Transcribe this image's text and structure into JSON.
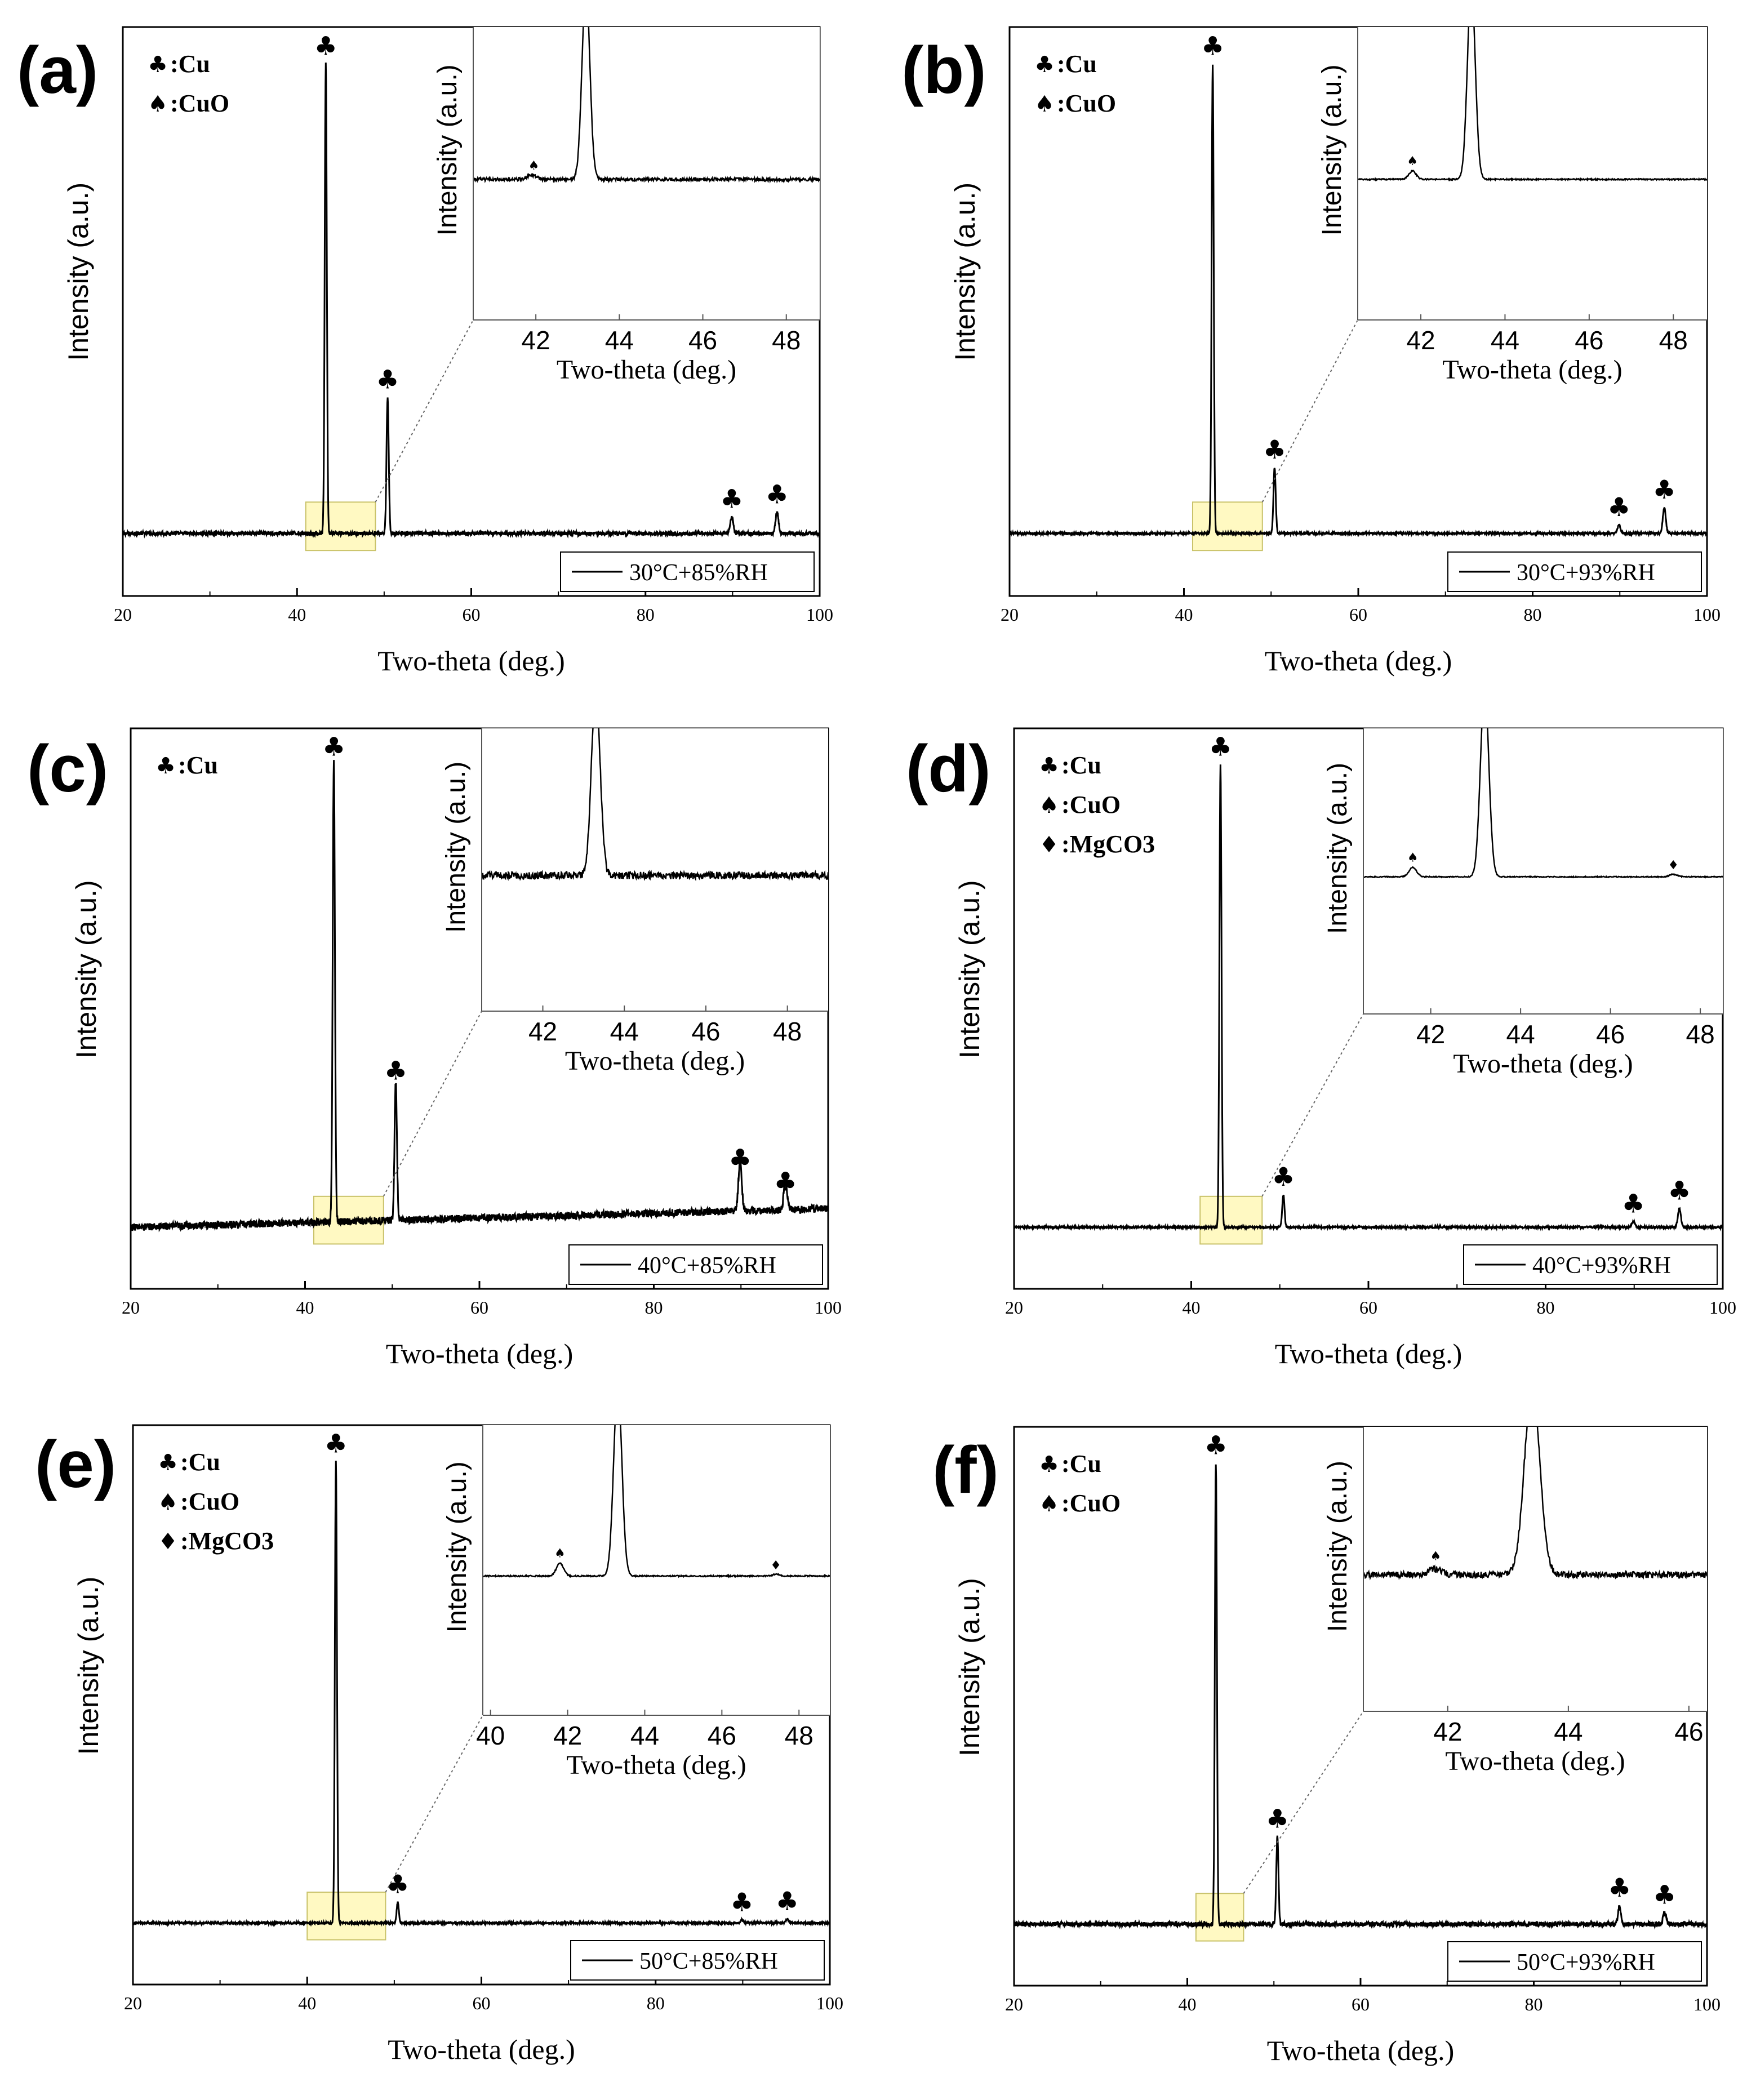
{
  "chart_data": [
    {
      "type": "line",
      "panel": "(a)",
      "x_label": "Two-theta (deg.)",
      "y_label": "Intensity (a.u.)",
      "xlim": [
        20,
        100
      ],
      "x_ticks": [
        "20",
        "40",
        "60",
        "80",
        "100"
      ],
      "legend": "30°C+85%RH",
      "phase_legend": [
        {
          "symbol": "♣",
          "label": ":Cu"
        },
        {
          "symbol": "♠",
          "label": ":CuO"
        }
      ],
      "noise": 0.004,
      "series": [
        {
          "peaks": [
            {
              "x": 43.3,
              "h": 1.0,
              "w": 0.28
            },
            {
              "x": 50.4,
              "h": 0.29,
              "w": 0.3
            },
            {
              "x": 89.9,
              "h": 0.035,
              "w": 0.4
            },
            {
              "x": 95.1,
              "h": 0.045,
              "w": 0.4
            }
          ]
        }
      ],
      "peak_markers": [
        {
          "x": 43.3,
          "h": 1.0,
          "symbol": "♣"
        },
        {
          "x": 50.4,
          "h": 0.29,
          "symbol": "♣"
        },
        {
          "x": 89.9,
          "h": 0.035,
          "symbol": "♣"
        },
        {
          "x": 95.1,
          "h": 0.045,
          "symbol": "♣"
        }
      ],
      "zoom_box": [
        41,
        49
      ],
      "inset": {
        "xlim": [
          40.5,
          48.8
        ],
        "x_ticks": [
          "42",
          "44",
          "46",
          "48"
        ],
        "x_label": "Two-theta (deg.)",
        "y_label": "Intensity (a.u.)",
        "noise": 0.025,
        "peaks": [
          {
            "x": 43.2,
            "h": 3.0,
            "w": 0.22
          },
          {
            "x": 41.9,
            "h": 0.07,
            "w": 0.25
          }
        ],
        "markers": [
          {
            "x": 41.95,
            "h": 0.1,
            "symbol": "♠"
          }
        ]
      }
    },
    {
      "type": "line",
      "panel": "(b)",
      "x_label": "Two-theta (deg.)",
      "y_label": "Intensity (a.u.)",
      "xlim": [
        20,
        100
      ],
      "x_ticks": [
        "20",
        "40",
        "60",
        "80",
        "100"
      ],
      "legend": "30°C+93%RH",
      "phase_legend": [
        {
          "symbol": "♣",
          "label": ":Cu"
        },
        {
          "symbol": "♠",
          "label": ":CuO"
        }
      ],
      "noise": 0.002,
      "series": [
        {
          "peaks": [
            {
              "x": 43.3,
              "h": 1.0,
              "w": 0.28
            },
            {
              "x": 50.4,
              "h": 0.14,
              "w": 0.3
            },
            {
              "x": 89.9,
              "h": 0.018,
              "w": 0.4
            },
            {
              "x": 95.1,
              "h": 0.055,
              "w": 0.4
            }
          ]
        }
      ],
      "peak_markers": [
        {
          "x": 43.3,
          "h": 1.0,
          "symbol": "♣"
        },
        {
          "x": 50.4,
          "h": 0.14,
          "symbol": "♣"
        },
        {
          "x": 89.9,
          "h": 0.018,
          "symbol": "♣"
        },
        {
          "x": 95.1,
          "h": 0.055,
          "symbol": "♣"
        }
      ],
      "zoom_box": [
        41,
        49
      ],
      "inset": {
        "xlim": [
          40.5,
          48.8
        ],
        "x_ticks": [
          "42",
          "44",
          "46",
          "48"
        ],
        "x_label": "Two-theta (deg.)",
        "y_label": "Intensity (a.u.)",
        "noise": 0.01,
        "peaks": [
          {
            "x": 43.2,
            "h": 3.0,
            "w": 0.22
          },
          {
            "x": 41.8,
            "h": 0.13,
            "w": 0.2
          }
        ],
        "markers": [
          {
            "x": 41.8,
            "h": 0.17,
            "symbol": "♠"
          }
        ]
      }
    },
    {
      "type": "line",
      "panel": "(c)",
      "x_label": "Two-theta (deg.)",
      "y_label": "Intensity (a.u.)",
      "xlim": [
        20,
        100
      ],
      "x_ticks": [
        "20",
        "40",
        "60",
        "80",
        "100"
      ],
      "legend": "40°C+85%RH",
      "phase_legend": [
        {
          "symbol": "♣",
          "label": ":Cu"
        }
      ],
      "noise": 0.008,
      "slope": 0.04,
      "series": [
        {
          "peaks": [
            {
              "x": 43.3,
              "h": 1.0,
              "w": 0.3
            },
            {
              "x": 50.4,
              "h": 0.3,
              "w": 0.32
            },
            {
              "x": 89.9,
              "h": 0.11,
              "w": 0.45
            },
            {
              "x": 95.1,
              "h": 0.06,
              "w": 0.45
            }
          ]
        }
      ],
      "peak_markers": [
        {
          "x": 43.3,
          "h": 1.0,
          "symbol": "♣"
        },
        {
          "x": 50.4,
          "h": 0.3,
          "symbol": "♣"
        },
        {
          "x": 89.9,
          "h": 0.11,
          "symbol": "♣"
        },
        {
          "x": 95.1,
          "h": 0.06,
          "symbol": "♣"
        }
      ],
      "zoom_box": [
        41,
        49
      ],
      "inset": {
        "xlim": [
          40.5,
          49
        ],
        "x_ticks": [
          "42",
          "44",
          "46",
          "48"
        ],
        "x_label": "Two-theta (deg.)",
        "y_label": "Intensity (a.u.)",
        "noise": 0.06,
        "peaks": [
          {
            "x": 43.3,
            "h": 3.0,
            "w": 0.25
          }
        ],
        "markers": []
      }
    },
    {
      "type": "line",
      "panel": "(d)",
      "x_label": "Two-theta (deg.)",
      "y_label": "Intensity (a.u.)",
      "xlim": [
        20,
        100
      ],
      "x_ticks": [
        "20",
        "40",
        "60",
        "80",
        "100"
      ],
      "legend": "40°C+93%RH",
      "phase_legend": [
        {
          "symbol": "♣",
          "label": ":Cu"
        },
        {
          "symbol": "♠",
          "label": ":CuO"
        },
        {
          "symbol": "♦",
          "label": ":MgCO3"
        }
      ],
      "noise": 0.002,
      "series": [
        {
          "peaks": [
            {
              "x": 43.3,
              "h": 1.0,
              "w": 0.28
            },
            {
              "x": 50.4,
              "h": 0.07,
              "w": 0.3
            },
            {
              "x": 89.9,
              "h": 0.012,
              "w": 0.4
            },
            {
              "x": 95.1,
              "h": 0.04,
              "w": 0.4
            }
          ]
        }
      ],
      "peak_markers": [
        {
          "x": 43.3,
          "h": 1.0,
          "symbol": "♣"
        },
        {
          "x": 50.4,
          "h": 0.07,
          "symbol": "♣"
        },
        {
          "x": 89.9,
          "h": 0.012,
          "symbol": "♣"
        },
        {
          "x": 95.1,
          "h": 0.04,
          "symbol": "♣"
        }
      ],
      "zoom_box": [
        41,
        48
      ],
      "inset": {
        "xlim": [
          40.5,
          48.5
        ],
        "x_ticks": [
          "42",
          "44",
          "46",
          "48"
        ],
        "x_label": "Two-theta (deg.)",
        "y_label": "Intensity (a.u.)",
        "noise": 0.008,
        "peaks": [
          {
            "x": 43.2,
            "h": 3.0,
            "w": 0.22
          },
          {
            "x": 41.6,
            "h": 0.15,
            "w": 0.2
          },
          {
            "x": 47.4,
            "h": 0.04,
            "w": 0.2
          }
        ],
        "markers": [
          {
            "x": 41.6,
            "h": 0.19,
            "symbol": "♠"
          },
          {
            "x": 47.4,
            "h": 0.07,
            "symbol": "♦"
          }
        ]
      }
    },
    {
      "type": "line",
      "panel": "(e)",
      "x_label": "Two-theta (deg.)",
      "y_label": "Intensity (a.u.)",
      "xlim": [
        20,
        100
      ],
      "x_ticks": [
        "20",
        "40",
        "60",
        "80",
        "100"
      ],
      "legend": "50°C+85%RH",
      "phase_legend": [
        {
          "symbol": "♣",
          "label": ":Cu"
        },
        {
          "symbol": "♠",
          "label": ":CuO"
        },
        {
          "symbol": "♦",
          "label": ":MgCO3"
        }
      ],
      "noise": 0.002,
      "series": [
        {
          "peaks": [
            {
              "x": 43.3,
              "h": 1.0,
              "w": 0.28
            },
            {
              "x": 50.4,
              "h": 0.045,
              "w": 0.3
            },
            {
              "x": 89.9,
              "h": 0.006,
              "w": 0.4
            },
            {
              "x": 95.1,
              "h": 0.008,
              "w": 0.4
            }
          ]
        }
      ],
      "peak_markers": [
        {
          "x": 43.3,
          "h": 1.0,
          "symbol": "♣"
        },
        {
          "x": 50.4,
          "h": 0.045,
          "symbol": "♣"
        },
        {
          "x": 89.9,
          "h": 0.006,
          "symbol": "♣"
        },
        {
          "x": 95.1,
          "h": 0.008,
          "symbol": "♣"
        }
      ],
      "zoom_box": [
        40,
        49
      ],
      "inset": {
        "xlim": [
          39.8,
          48.8
        ],
        "x_ticks": [
          "40",
          "42",
          "44",
          "46",
          "48"
        ],
        "x_label": "Two-theta (deg.)",
        "y_label": "Intensity (a.u.)",
        "noise": 0.01,
        "peaks": [
          {
            "x": 43.3,
            "h": 3.0,
            "w": 0.25
          },
          {
            "x": 41.8,
            "h": 0.2,
            "w": 0.22
          },
          {
            "x": 47.4,
            "h": 0.03,
            "w": 0.2
          }
        ],
        "markers": [
          {
            "x": 41.8,
            "h": 0.24,
            "symbol": "♠"
          },
          {
            "x": 47.4,
            "h": 0.05,
            "symbol": "♦"
          }
        ]
      }
    },
    {
      "type": "line",
      "panel": "(f)",
      "x_label": "Two-theta (deg.)",
      "y_label": "Intensity (a.u.)",
      "xlim": [
        20,
        100
      ],
      "x_ticks": [
        "20",
        "40",
        "60",
        "80",
        "100"
      ],
      "legend": "50°C+93%RH",
      "phase_legend": [
        {
          "symbol": "♣",
          "label": ":Cu"
        },
        {
          "symbol": "♠",
          "label": ":CuO"
        }
      ],
      "noise": 0.005,
      "series": [
        {
          "peaks": [
            {
              "x": 43.3,
              "h": 1.0,
              "w": 0.28
            },
            {
              "x": 50.4,
              "h": 0.19,
              "w": 0.3
            },
            {
              "x": 89.9,
              "h": 0.04,
              "w": 0.4
            },
            {
              "x": 95.1,
              "h": 0.025,
              "w": 0.4
            }
          ]
        }
      ],
      "peak_markers": [
        {
          "x": 43.3,
          "h": 1.0,
          "symbol": "♣"
        },
        {
          "x": 50.4,
          "h": 0.19,
          "symbol": "♣"
        },
        {
          "x": 89.9,
          "h": 0.04,
          "symbol": "♣"
        },
        {
          "x": 95.1,
          "h": 0.025,
          "symbol": "♣"
        }
      ],
      "zoom_box": [
        41,
        46.5
      ],
      "inset": {
        "xlim": [
          40.6,
          46.3
        ],
        "x_ticks": [
          "42",
          "44",
          "46"
        ],
        "x_label": "Two-theta (deg.)",
        "y_label": "Intensity (a.u.)",
        "noise": 0.05,
        "peaks": [
          {
            "x": 43.4,
            "h": 3.0,
            "w": 0.3
          },
          {
            "x": 41.8,
            "h": 0.09,
            "w": 0.25
          }
        ],
        "markers": [
          {
            "x": 41.8,
            "h": 0.18,
            "symbol": "♠"
          }
        ]
      }
    }
  ]
}
